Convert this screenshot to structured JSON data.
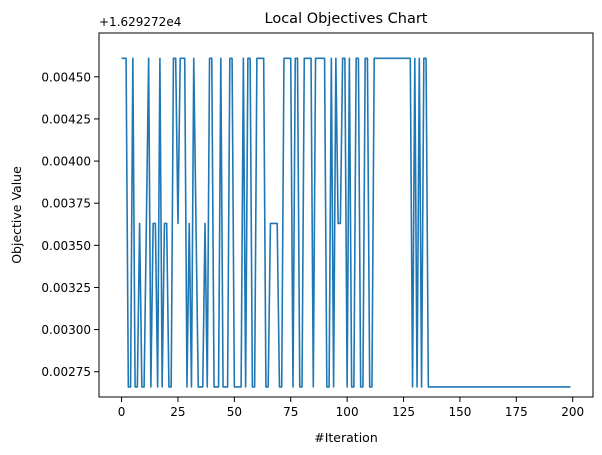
{
  "chart_data": {
    "type": "line",
    "title": "Local Objectives Chart",
    "xlabel": "#Iteration",
    "ylabel": "Objective Value",
    "y_offset_label": "+1.629272e4",
    "xlim": [
      -10,
      209
    ],
    "ylim": [
      0.0026,
      0.00476
    ],
    "x_ticks": [
      0,
      25,
      50,
      75,
      100,
      125,
      150,
      175,
      200
    ],
    "y_ticks": [
      0.00275,
      0.003,
      0.00325,
      0.0035,
      0.00375,
      0.004,
      0.00425,
      0.0045
    ],
    "y_tick_labels": [
      "0.00275",
      "0.00300",
      "0.00325",
      "0.00350",
      "0.00375",
      "0.00400",
      "0.00425",
      "0.00450"
    ],
    "grid": false,
    "legend": "none",
    "series": [
      {
        "color": "#1f77b4",
        "x": [
          0,
          1,
          2,
          3,
          4,
          5,
          6,
          7,
          8,
          9,
          10,
          11,
          12,
          13,
          14,
          15,
          16,
          17,
          18,
          19,
          20,
          21,
          22,
          23,
          24,
          25,
          26,
          27,
          28,
          29,
          30,
          31,
          32,
          33,
          34,
          35,
          36,
          37,
          38,
          39,
          40,
          41,
          42,
          43,
          44,
          45,
          46,
          47,
          48,
          49,
          50,
          51,
          52,
          53,
          54,
          55,
          56,
          57,
          58,
          59,
          60,
          61,
          62,
          63,
          64,
          65,
          66,
          67,
          68,
          69,
          70,
          71,
          72,
          73,
          74,
          75,
          76,
          77,
          78,
          79,
          80,
          81,
          82,
          83,
          84,
          85,
          86,
          87,
          88,
          89,
          90,
          91,
          92,
          93,
          94,
          95,
          96,
          97,
          98,
          99,
          100,
          101,
          102,
          103,
          104,
          105,
          106,
          107,
          108,
          109,
          110,
          111,
          112,
          113,
          114,
          115,
          116,
          117,
          118,
          119,
          120,
          121,
          122,
          123,
          124,
          125,
          126,
          127,
          128,
          129,
          130,
          131,
          132,
          133,
          134,
          135,
          136,
          199
        ],
        "y": [
          0.00461,
          0.00461,
          0.00461,
          0.00266,
          0.00266,
          0.00461,
          0.00266,
          0.00266,
          0.00363,
          0.00266,
          0.00266,
          0.00363,
          0.00461,
          0.00266,
          0.00363,
          0.00363,
          0.00266,
          0.00461,
          0.00266,
          0.00363,
          0.00363,
          0.00266,
          0.00266,
          0.00461,
          0.00461,
          0.00363,
          0.00461,
          0.00461,
          0.00461,
          0.00266,
          0.00363,
          0.00266,
          0.00461,
          0.00363,
          0.00266,
          0.00266,
          0.00266,
          0.00363,
          0.00266,
          0.00461,
          0.00461,
          0.00266,
          0.00266,
          0.00266,
          0.00461,
          0.00266,
          0.00266,
          0.00266,
          0.00461,
          0.00461,
          0.00266,
          0.00266,
          0.00266,
          0.00266,
          0.00461,
          0.00266,
          0.00461,
          0.00461,
          0.00266,
          0.00266,
          0.00461,
          0.00461,
          0.00461,
          0.00461,
          0.00266,
          0.00266,
          0.00363,
          0.00363,
          0.00363,
          0.00363,
          0.00266,
          0.00266,
          0.00461,
          0.00461,
          0.00461,
          0.00461,
          0.00266,
          0.00461,
          0.00461,
          0.00266,
          0.00266,
          0.00461,
          0.00461,
          0.00461,
          0.00461,
          0.00266,
          0.00461,
          0.00461,
          0.00461,
          0.00461,
          0.00461,
          0.00266,
          0.00266,
          0.00461,
          0.00266,
          0.00461,
          0.00363,
          0.00363,
          0.00461,
          0.00461,
          0.00266,
          0.00461,
          0.00266,
          0.00266,
          0.00461,
          0.00461,
          0.00266,
          0.00266,
          0.00461,
          0.00461,
          0.00266,
          0.00266,
          0.00461,
          0.00461,
          0.00461,
          0.00461,
          0.00461,
          0.00461,
          0.00461,
          0.00461,
          0.00461,
          0.00461,
          0.00461,
          0.00461,
          0.00461,
          0.00461,
          0.00461,
          0.00461,
          0.00461,
          0.00266,
          0.00461,
          0.00266,
          0.00461,
          0.00266,
          0.00461,
          0.00461,
          0.00266,
          0.00266
        ]
      }
    ]
  }
}
